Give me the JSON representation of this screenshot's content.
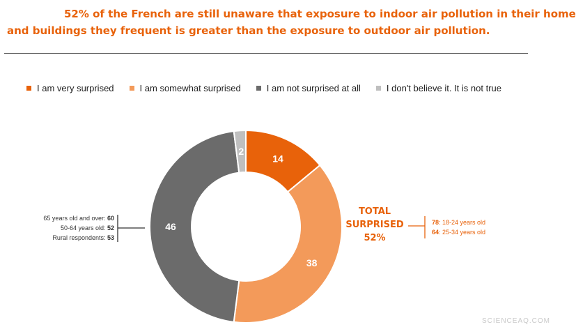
{
  "header": {
    "title_line1": "52% of the French are still unaware that exposure to indoor air pollution in their home",
    "title_line2": "and buildings they frequent is greater than the exposure to outdoor air pollution."
  },
  "legend": [
    {
      "label": "I am very surprised",
      "color": "#e8620a"
    },
    {
      "label": "I am somewhat surprised",
      "color": "#f39a5a"
    },
    {
      "label": "I am not surprised at all",
      "color": "#6b6b6b"
    },
    {
      "label": "I don't believe it. It is not true",
      "color": "#bfbfbf"
    }
  ],
  "chart_data": {
    "type": "pie",
    "donut": true,
    "slices": [
      {
        "label": "I am very surprised",
        "value": 14,
        "color": "#e8620a"
      },
      {
        "label": "I am somewhat surprised",
        "value": 38,
        "color": "#f39a5a"
      },
      {
        "label": "I am not surprised at all",
        "value": 46,
        "color": "#6b6b6b"
      },
      {
        "label": "I don't believe it. It is not true",
        "value": 2,
        "color": "#bfbfbf"
      }
    ],
    "legend_position": "top"
  },
  "annotations": {
    "left": [
      {
        "text": "65 years old and over: ",
        "value": "60"
      },
      {
        "text": "50-64 years old: ",
        "value": "52"
      },
      {
        "text": "Rural respondents: ",
        "value": "53"
      }
    ],
    "total": {
      "line1": "TOTAL",
      "line2": "SURPRISED",
      "line3": "52%"
    },
    "right": [
      {
        "value": "78",
        "text": ": 18-24 years old"
      },
      {
        "value": "64",
        "text": ": 25-34 years old"
      }
    ]
  },
  "watermark": "SCIENCEAQ.COM"
}
